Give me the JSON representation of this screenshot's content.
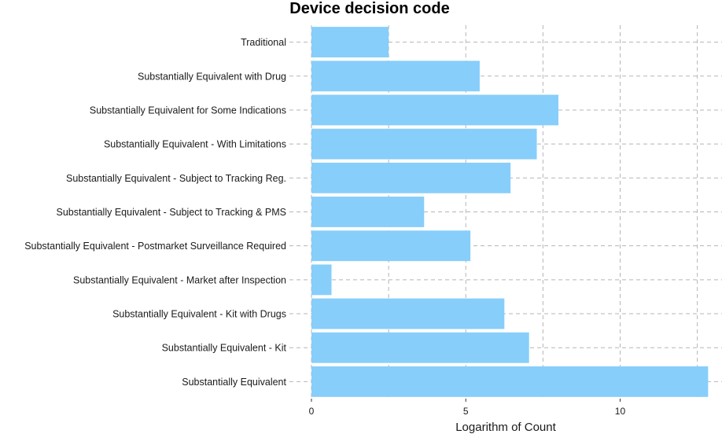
{
  "chart_data": {
    "type": "bar",
    "orientation": "horizontal",
    "title": "Device decision code",
    "xlabel": "Logarithm of Count",
    "ylabel": "",
    "categories": [
      "Traditional",
      "Substantially Equivalent with Drug",
      "Substantially Equivalent for Some Indications",
      "Substantially Equivalent - With Limitations",
      "Substantially Equivalent - Subject to Tracking Reg.",
      "Substantially Equivalent - Subject to Tracking & PMS",
      "Substantially Equivalent - Postmarket Surveillance Required",
      "Substantially Equivalent - Market after Inspection",
      "Substantially Equivalent - Kit with Drugs",
      "Substantially Equivalent - Kit",
      "Substantially Equivalent"
    ],
    "values": [
      2.5,
      5.45,
      8.0,
      7.3,
      6.45,
      3.65,
      5.15,
      0.65,
      6.25,
      7.05,
      12.85
    ],
    "xlim": [
      0,
      13.3
    ],
    "xticks": [
      0,
      5,
      10
    ],
    "grid": true,
    "bar_color": "#87CEFA",
    "grid_color": "#b5b5b5"
  }
}
